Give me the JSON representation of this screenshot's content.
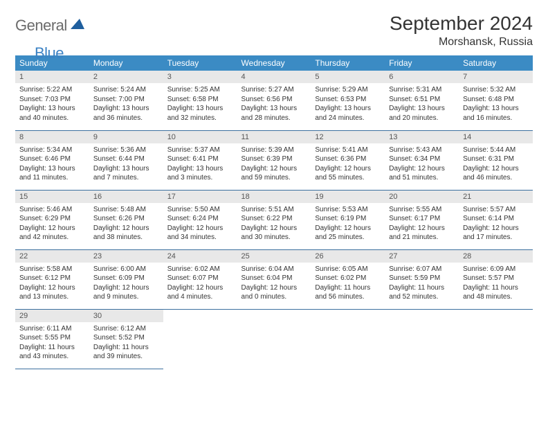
{
  "logo": {
    "text_general": "General",
    "text_blue": "Blue"
  },
  "title": {
    "month": "September 2024",
    "location": "Morshansk, Russia"
  },
  "colors": {
    "header_bg": "#3b8bc4",
    "header_text": "#ffffff",
    "daynum_bg": "#e8e8e8",
    "border": "#3b6f9e",
    "logo_gray": "#6b6b6b",
    "logo_blue": "#3b82c4"
  },
  "weekdays": [
    "Sunday",
    "Monday",
    "Tuesday",
    "Wednesday",
    "Thursday",
    "Friday",
    "Saturday"
  ],
  "weeks": [
    [
      {
        "n": "1",
        "sr": "5:22 AM",
        "ss": "7:03 PM",
        "dl": "13 hours and 40 minutes."
      },
      {
        "n": "2",
        "sr": "5:24 AM",
        "ss": "7:00 PM",
        "dl": "13 hours and 36 minutes."
      },
      {
        "n": "3",
        "sr": "5:25 AM",
        "ss": "6:58 PM",
        "dl": "13 hours and 32 minutes."
      },
      {
        "n": "4",
        "sr": "5:27 AM",
        "ss": "6:56 PM",
        "dl": "13 hours and 28 minutes."
      },
      {
        "n": "5",
        "sr": "5:29 AM",
        "ss": "6:53 PM",
        "dl": "13 hours and 24 minutes."
      },
      {
        "n": "6",
        "sr": "5:31 AM",
        "ss": "6:51 PM",
        "dl": "13 hours and 20 minutes."
      },
      {
        "n": "7",
        "sr": "5:32 AM",
        "ss": "6:48 PM",
        "dl": "13 hours and 16 minutes."
      }
    ],
    [
      {
        "n": "8",
        "sr": "5:34 AM",
        "ss": "6:46 PM",
        "dl": "13 hours and 11 minutes."
      },
      {
        "n": "9",
        "sr": "5:36 AM",
        "ss": "6:44 PM",
        "dl": "13 hours and 7 minutes."
      },
      {
        "n": "10",
        "sr": "5:37 AM",
        "ss": "6:41 PM",
        "dl": "13 hours and 3 minutes."
      },
      {
        "n": "11",
        "sr": "5:39 AM",
        "ss": "6:39 PM",
        "dl": "12 hours and 59 minutes."
      },
      {
        "n": "12",
        "sr": "5:41 AM",
        "ss": "6:36 PM",
        "dl": "12 hours and 55 minutes."
      },
      {
        "n": "13",
        "sr": "5:43 AM",
        "ss": "6:34 PM",
        "dl": "12 hours and 51 minutes."
      },
      {
        "n": "14",
        "sr": "5:44 AM",
        "ss": "6:31 PM",
        "dl": "12 hours and 46 minutes."
      }
    ],
    [
      {
        "n": "15",
        "sr": "5:46 AM",
        "ss": "6:29 PM",
        "dl": "12 hours and 42 minutes."
      },
      {
        "n": "16",
        "sr": "5:48 AM",
        "ss": "6:26 PM",
        "dl": "12 hours and 38 minutes."
      },
      {
        "n": "17",
        "sr": "5:50 AM",
        "ss": "6:24 PM",
        "dl": "12 hours and 34 minutes."
      },
      {
        "n": "18",
        "sr": "5:51 AM",
        "ss": "6:22 PM",
        "dl": "12 hours and 30 minutes."
      },
      {
        "n": "19",
        "sr": "5:53 AM",
        "ss": "6:19 PM",
        "dl": "12 hours and 25 minutes."
      },
      {
        "n": "20",
        "sr": "5:55 AM",
        "ss": "6:17 PM",
        "dl": "12 hours and 21 minutes."
      },
      {
        "n": "21",
        "sr": "5:57 AM",
        "ss": "6:14 PM",
        "dl": "12 hours and 17 minutes."
      }
    ],
    [
      {
        "n": "22",
        "sr": "5:58 AM",
        "ss": "6:12 PM",
        "dl": "12 hours and 13 minutes."
      },
      {
        "n": "23",
        "sr": "6:00 AM",
        "ss": "6:09 PM",
        "dl": "12 hours and 9 minutes."
      },
      {
        "n": "24",
        "sr": "6:02 AM",
        "ss": "6:07 PM",
        "dl": "12 hours and 4 minutes."
      },
      {
        "n": "25",
        "sr": "6:04 AM",
        "ss": "6:04 PM",
        "dl": "12 hours and 0 minutes."
      },
      {
        "n": "26",
        "sr": "6:05 AM",
        "ss": "6:02 PM",
        "dl": "11 hours and 56 minutes."
      },
      {
        "n": "27",
        "sr": "6:07 AM",
        "ss": "5:59 PM",
        "dl": "11 hours and 52 minutes."
      },
      {
        "n": "28",
        "sr": "6:09 AM",
        "ss": "5:57 PM",
        "dl": "11 hours and 48 minutes."
      }
    ],
    [
      {
        "n": "29",
        "sr": "6:11 AM",
        "ss": "5:55 PM",
        "dl": "11 hours and 43 minutes."
      },
      {
        "n": "30",
        "sr": "6:12 AM",
        "ss": "5:52 PM",
        "dl": "11 hours and 39 minutes."
      },
      null,
      null,
      null,
      null,
      null
    ]
  ],
  "labels": {
    "sunrise": "Sunrise:",
    "sunset": "Sunset:",
    "daylight": "Daylight:"
  }
}
